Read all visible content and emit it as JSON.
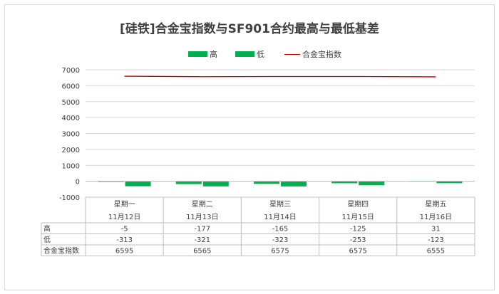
{
  "chart_data": {
    "type": "bar",
    "title": "[硅铁]合金宝指数与SF901合约最高与最低基差",
    "categories": [
      {
        "day": "星期一",
        "date": "11月12日"
      },
      {
        "day": "星期二",
        "date": "11月13日"
      },
      {
        "day": "星期三",
        "date": "11月14日"
      },
      {
        "day": "星期四",
        "date": "11月15日"
      },
      {
        "day": "星期五",
        "date": "11月16日"
      }
    ],
    "series": [
      {
        "name": "高",
        "kind": "bar",
        "color": "#00b050",
        "values": [
          -5,
          -177,
          -165,
          -125,
          31
        ]
      },
      {
        "name": "低",
        "kind": "bar",
        "color": "#00b050",
        "values": [
          -313,
          -321,
          -323,
          -253,
          -123
        ]
      },
      {
        "name": "合金宝指数",
        "kind": "line",
        "color": "#c00000",
        "values": [
          6595,
          6565,
          6575,
          6575,
          6555
        ]
      }
    ],
    "y_ticks": [
      7000,
      6000,
      5000,
      4000,
      3000,
      2000,
      1000,
      0,
      -1000
    ],
    "ylim": [
      -1000,
      7000
    ],
    "grid": true,
    "legend_position": "top",
    "table_row_labels": [
      "高",
      "低",
      "合金宝指数"
    ]
  }
}
